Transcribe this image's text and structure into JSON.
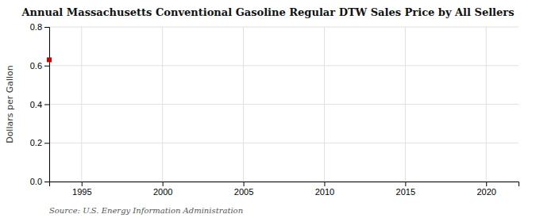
{
  "chart_data": {
    "type": "scatter",
    "title": "Annual Massachusetts Conventional Gasoline Regular DTW Sales Price by All Sellers",
    "ylabel": "Dollars per Gallon",
    "source": "Source: U.S. Energy Information Administration",
    "x": [
      1993
    ],
    "values": [
      0.63
    ],
    "color": "#cc0000",
    "marker": "square",
    "xlim": [
      1993,
      2022
    ],
    "ylim": [
      0.0,
      0.8
    ],
    "xticks": [
      1995,
      2000,
      2005,
      2010,
      2015,
      2020
    ],
    "yticks": [
      {
        "value": 0.0,
        "label": "0.0"
      },
      0.2,
      0.4,
      0.6,
      0.8
    ],
    "grid": true
  }
}
